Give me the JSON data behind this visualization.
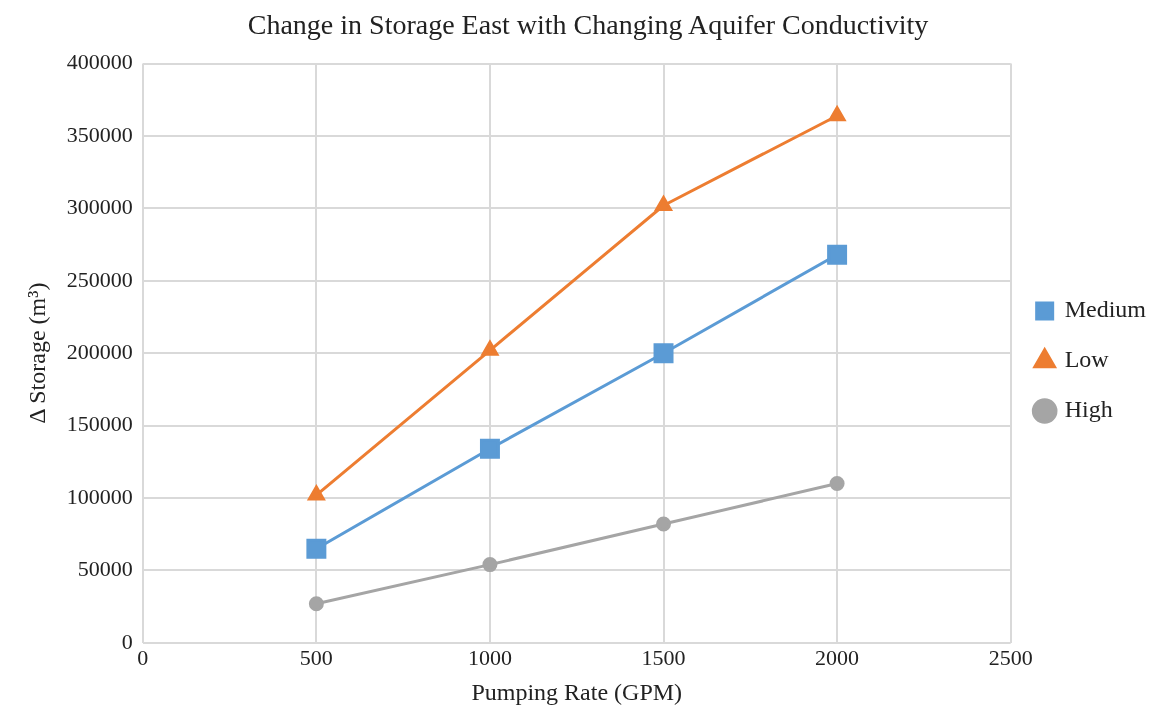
{
  "chart_data": {
    "type": "line",
    "title": "Change in Storage East with Changing Aquifer Conductivity",
    "xlabel": "Pumping Rate (GPM)",
    "ylabel": "Δ Storage (m³)",
    "x": [
      500,
      1000,
      1500,
      2000
    ],
    "series": [
      {
        "name": "Medium",
        "color": "#5b9bd5",
        "marker": "square",
        "values": [
          65000,
          134000,
          200000,
          268000
        ]
      },
      {
        "name": "Low",
        "color": "#ed7d31",
        "marker": "triangle",
        "values": [
          102000,
          202000,
          302000,
          364000
        ]
      },
      {
        "name": "High",
        "color": "#a5a5a5",
        "marker": "circle",
        "values": [
          27000,
          54000,
          82000,
          110000
        ]
      }
    ],
    "xlim": [
      0,
      2500
    ],
    "xticks": [
      0,
      500,
      1000,
      1500,
      2000,
      2500
    ],
    "ylim": [
      0,
      400000
    ],
    "yticks": [
      0,
      50000,
      100000,
      150000,
      200000,
      250000,
      300000,
      350000,
      400000
    ],
    "grid": true,
    "legend": "right",
    "line_style": "solid"
  }
}
